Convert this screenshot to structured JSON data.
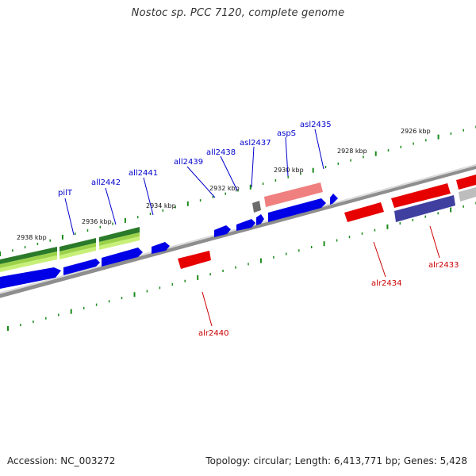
{
  "title": "Nostoc sp. PCC 7120, complete genome",
  "footer": {
    "accession": "Accession: NC_003272",
    "summary": "Topology: circular; Length: 6,413,771 bp; Genes: 5,428"
  },
  "ruler_labels": [
    "2938 kbp",
    "2936 kbp",
    "2934 kbp",
    "2932 kbp",
    "2930 kbp",
    "2928 kbp",
    "2926 kbp"
  ],
  "genes_reverse": [
    "pilT",
    "all2442",
    "all2441",
    "all2439",
    "all2438",
    "asl2437",
    "aspS",
    "asl2435"
  ],
  "genes_forward": [
    "alr2440",
    "alr2434",
    "alr2433"
  ],
  "colors": {
    "reverse_label": "#0000cc",
    "forward_label": "#cc0000",
    "tick": "#1a8a1a",
    "backbone": "#8c8c8c"
  }
}
